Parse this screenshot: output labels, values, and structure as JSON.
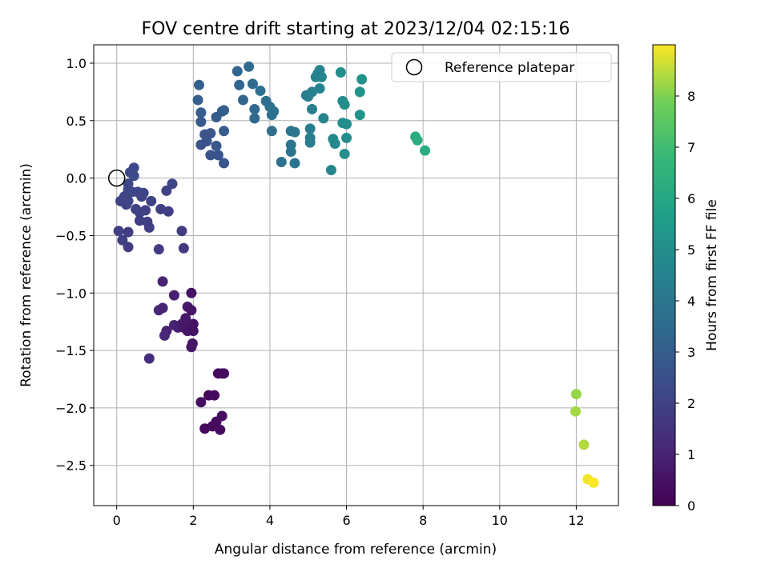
{
  "chart_data": {
    "type": "scatter",
    "title": "FOV centre drift starting at 2023/12/04 02:15:16",
    "xlabel": "Angular distance from reference (arcmin)",
    "ylabel": "Rotation from reference (arcmin)",
    "xlim": [
      -0.6,
      13.1
    ],
    "ylim": [
      -2.85,
      1.16
    ],
    "xticks": [
      "0",
      "2",
      "4",
      "6",
      "8",
      "10",
      "12"
    ],
    "yticks": [
      "1.0",
      "0.5",
      "0.0",
      "−0.5",
      "−1.0",
      "−1.5",
      "−2.0",
      "−2.5"
    ],
    "grid": true,
    "legend": {
      "placement": "top-right",
      "entries": [
        "Reference platepar"
      ]
    },
    "reference_point": {
      "x": 0.0,
      "y": 0.0
    },
    "colorbar": {
      "label": "Hours from first FF file",
      "range": [
        0,
        9
      ],
      "ticks": [
        "0",
        "1",
        "2",
        "3",
        "4",
        "5",
        "6",
        "7",
        "8"
      ],
      "colormap": "viridis"
    },
    "points": [
      {
        "x": 2.3,
        "y": -2.18,
        "h": 0.2
      },
      {
        "x": 2.5,
        "y": -2.16,
        "h": 0.25
      },
      {
        "x": 2.6,
        "y": -2.12,
        "h": 0.3
      },
      {
        "x": 2.7,
        "y": -2.19,
        "h": 0.35
      },
      {
        "x": 2.75,
        "y": -2.07,
        "h": 0.4
      },
      {
        "x": 2.4,
        "y": -1.89,
        "h": 0.2
      },
      {
        "x": 2.55,
        "y": -1.89,
        "h": 0.25
      },
      {
        "x": 2.65,
        "y": -1.7,
        "h": 0.3
      },
      {
        "x": 2.8,
        "y": -1.7,
        "h": 0.35
      },
      {
        "x": 2.75,
        "y": -1.7,
        "h": 0.3
      },
      {
        "x": 2.2,
        "y": -1.95,
        "h": 0.35
      },
      {
        "x": 1.2,
        "y": -0.9,
        "h": 1.0
      },
      {
        "x": 1.5,
        "y": -1.02,
        "h": 0.9
      },
      {
        "x": 1.95,
        "y": -1.0,
        "h": 0.5
      },
      {
        "x": 1.1,
        "y": -1.15,
        "h": 1.1
      },
      {
        "x": 1.2,
        "y": -1.13,
        "h": 1.0
      },
      {
        "x": 1.3,
        "y": -1.33,
        "h": 1.0
      },
      {
        "x": 1.25,
        "y": -1.37,
        "h": 1.1
      },
      {
        "x": 1.5,
        "y": -1.28,
        "h": 1.0
      },
      {
        "x": 1.6,
        "y": -1.3,
        "h": 0.9
      },
      {
        "x": 1.7,
        "y": -1.27,
        "h": 0.8
      },
      {
        "x": 1.85,
        "y": -1.12,
        "h": 0.7
      },
      {
        "x": 1.95,
        "y": -1.15,
        "h": 0.6
      },
      {
        "x": 1.75,
        "y": -1.3,
        "h": 0.7
      },
      {
        "x": 1.85,
        "y": -1.33,
        "h": 0.6
      },
      {
        "x": 1.9,
        "y": -1.28,
        "h": 0.6
      },
      {
        "x": 2.0,
        "y": -1.27,
        "h": 0.5
      },
      {
        "x": 2.0,
        "y": -1.33,
        "h": 0.5
      },
      {
        "x": 1.95,
        "y": -1.47,
        "h": 0.6
      },
      {
        "x": 1.98,
        "y": -1.44,
        "h": 0.6
      },
      {
        "x": 1.8,
        "y": -1.22,
        "h": 0.7
      },
      {
        "x": 0.85,
        "y": -1.57,
        "h": 1.3
      },
      {
        "x": 0.05,
        "y": -0.46,
        "h": 1.9
      },
      {
        "x": 0.15,
        "y": -0.54,
        "h": 1.9
      },
      {
        "x": 0.3,
        "y": -0.6,
        "h": 1.8
      },
      {
        "x": 0.3,
        "y": -0.47,
        "h": 1.8
      },
      {
        "x": 0.1,
        "y": -0.2,
        "h": 2.0
      },
      {
        "x": 0.25,
        "y": -0.23,
        "h": 2.0
      },
      {
        "x": 0.3,
        "y": -0.2,
        "h": 2.1
      },
      {
        "x": 0.2,
        "y": -0.16,
        "h": 2.1
      },
      {
        "x": 0.3,
        "y": -0.1,
        "h": 2.1
      },
      {
        "x": 0.3,
        "y": -0.05,
        "h": 2.2
      },
      {
        "x": 0.35,
        "y": 0.05,
        "h": 2.2
      },
      {
        "x": 0.45,
        "y": 0.09,
        "h": 2.3
      },
      {
        "x": 0.45,
        "y": 0.02,
        "h": 2.3
      },
      {
        "x": 0.4,
        "y": -0.12,
        "h": 2.2
      },
      {
        "x": 0.55,
        "y": -0.12,
        "h": 2.1
      },
      {
        "x": 0.5,
        "y": -0.27,
        "h": 2.0
      },
      {
        "x": 0.6,
        "y": -0.3,
        "h": 1.9
      },
      {
        "x": 0.6,
        "y": -0.37,
        "h": 1.9
      },
      {
        "x": 0.65,
        "y": -0.16,
        "h": 2.0
      },
      {
        "x": 0.7,
        "y": -0.13,
        "h": 2.1
      },
      {
        "x": 0.75,
        "y": -0.28,
        "h": 1.9
      },
      {
        "x": 0.8,
        "y": -0.38,
        "h": 1.9
      },
      {
        "x": 0.85,
        "y": -0.43,
        "h": 1.9
      },
      {
        "x": 0.9,
        "y": -0.2,
        "h": 2.0
      },
      {
        "x": 1.1,
        "y": -0.62,
        "h": 1.8
      },
      {
        "x": 1.15,
        "y": -0.27,
        "h": 1.9
      },
      {
        "x": 1.3,
        "y": -0.11,
        "h": 2.0
      },
      {
        "x": 1.35,
        "y": -0.29,
        "h": 1.9
      },
      {
        "x": 1.45,
        "y": -0.05,
        "h": 2.1
      },
      {
        "x": 1.7,
        "y": -0.46,
        "h": 1.8
      },
      {
        "x": 1.75,
        "y": -0.61,
        "h": 1.7
      },
      {
        "x": 2.15,
        "y": 0.81,
        "h": 3.1
      },
      {
        "x": 2.12,
        "y": 0.68,
        "h": 3.0
      },
      {
        "x": 2.2,
        "y": 0.57,
        "h": 3.0
      },
      {
        "x": 2.2,
        "y": 0.49,
        "h": 2.9
      },
      {
        "x": 2.3,
        "y": 0.38,
        "h": 2.7
      },
      {
        "x": 2.35,
        "y": 0.32,
        "h": 2.7
      },
      {
        "x": 2.2,
        "y": 0.29,
        "h": 2.6
      },
      {
        "x": 2.45,
        "y": 0.39,
        "h": 2.7
      },
      {
        "x": 2.45,
        "y": 0.2,
        "h": 2.6
      },
      {
        "x": 2.6,
        "y": 0.53,
        "h": 2.9
      },
      {
        "x": 2.6,
        "y": 0.28,
        "h": 2.8
      },
      {
        "x": 2.65,
        "y": 0.2,
        "h": 2.7
      },
      {
        "x": 2.75,
        "y": 0.58,
        "h": 3.0
      },
      {
        "x": 2.8,
        "y": 0.59,
        "h": 3.0
      },
      {
        "x": 2.8,
        "y": 0.41,
        "h": 2.9
      },
      {
        "x": 2.8,
        "y": 0.13,
        "h": 2.7
      },
      {
        "x": 3.15,
        "y": 0.93,
        "h": 3.3
      },
      {
        "x": 3.2,
        "y": 0.81,
        "h": 3.3
      },
      {
        "x": 3.3,
        "y": 0.68,
        "h": 3.3
      },
      {
        "x": 3.45,
        "y": 0.97,
        "h": 3.5
      },
      {
        "x": 3.55,
        "y": 0.82,
        "h": 3.5
      },
      {
        "x": 3.6,
        "y": 0.6,
        "h": 3.5
      },
      {
        "x": 3.6,
        "y": 0.52,
        "h": 3.5
      },
      {
        "x": 3.75,
        "y": 0.76,
        "h": 3.7
      },
      {
        "x": 3.9,
        "y": 0.67,
        "h": 3.7
      },
      {
        "x": 4.0,
        "y": 0.62,
        "h": 3.8
      },
      {
        "x": 4.05,
        "y": 0.55,
        "h": 3.8
      },
      {
        "x": 4.05,
        "y": 0.41,
        "h": 3.7
      },
      {
        "x": 4.1,
        "y": 0.58,
        "h": 3.8
      },
      {
        "x": 4.3,
        "y": 0.14,
        "h": 3.8
      },
      {
        "x": 4.55,
        "y": 0.41,
        "h": 3.9
      },
      {
        "x": 4.65,
        "y": 0.4,
        "h": 4.0
      },
      {
        "x": 4.55,
        "y": 0.29,
        "h": 4.0
      },
      {
        "x": 4.55,
        "y": 0.23,
        "h": 4.0
      },
      {
        "x": 4.65,
        "y": 0.13,
        "h": 4.0
      },
      {
        "x": 4.95,
        "y": 0.72,
        "h": 4.3
      },
      {
        "x": 5.0,
        "y": 0.71,
        "h": 4.3
      },
      {
        "x": 5.1,
        "y": 0.75,
        "h": 4.4
      },
      {
        "x": 5.2,
        "y": 0.88,
        "h": 4.5
      },
      {
        "x": 5.25,
        "y": 0.91,
        "h": 4.5
      },
      {
        "x": 5.3,
        "y": 0.94,
        "h": 4.6
      },
      {
        "x": 5.35,
        "y": 0.88,
        "h": 4.6
      },
      {
        "x": 5.3,
        "y": 0.78,
        "h": 4.5
      },
      {
        "x": 5.1,
        "y": 0.6,
        "h": 4.4
      },
      {
        "x": 5.05,
        "y": 0.43,
        "h": 4.3
      },
      {
        "x": 5.05,
        "y": 0.35,
        "h": 4.3
      },
      {
        "x": 5.05,
        "y": 0.31,
        "h": 4.3
      },
      {
        "x": 5.4,
        "y": 0.52,
        "h": 4.6
      },
      {
        "x": 5.6,
        "y": 0.07,
        "h": 4.7
      },
      {
        "x": 5.65,
        "y": 0.34,
        "h": 4.8
      },
      {
        "x": 5.7,
        "y": 0.3,
        "h": 4.8
      },
      {
        "x": 5.85,
        "y": 0.92,
        "h": 5.0
      },
      {
        "x": 5.9,
        "y": 0.67,
        "h": 5.0
      },
      {
        "x": 5.95,
        "y": 0.64,
        "h": 5.0
      },
      {
        "x": 5.9,
        "y": 0.48,
        "h": 5.0
      },
      {
        "x": 6.0,
        "y": 0.47,
        "h": 5.0
      },
      {
        "x": 6.0,
        "y": 0.35,
        "h": 5.0
      },
      {
        "x": 5.95,
        "y": 0.21,
        "h": 5.0
      },
      {
        "x": 6.35,
        "y": 0.55,
        "h": 5.2
      },
      {
        "x": 6.35,
        "y": 0.75,
        "h": 5.2
      },
      {
        "x": 6.4,
        "y": 0.86,
        "h": 5.2
      },
      {
        "x": 7.8,
        "y": 0.36,
        "h": 6.2
      },
      {
        "x": 7.85,
        "y": 0.33,
        "h": 6.3
      },
      {
        "x": 8.05,
        "y": 0.24,
        "h": 6.3
      },
      {
        "x": 12.0,
        "y": -1.88,
        "h": 8.2
      },
      {
        "x": 11.98,
        "y": -2.03,
        "h": 8.3
      },
      {
        "x": 12.2,
        "y": -2.32,
        "h": 8.4
      },
      {
        "x": 12.3,
        "y": -2.62,
        "h": 8.9
      },
      {
        "x": 12.45,
        "y": -2.65,
        "h": 9.0
      }
    ]
  }
}
